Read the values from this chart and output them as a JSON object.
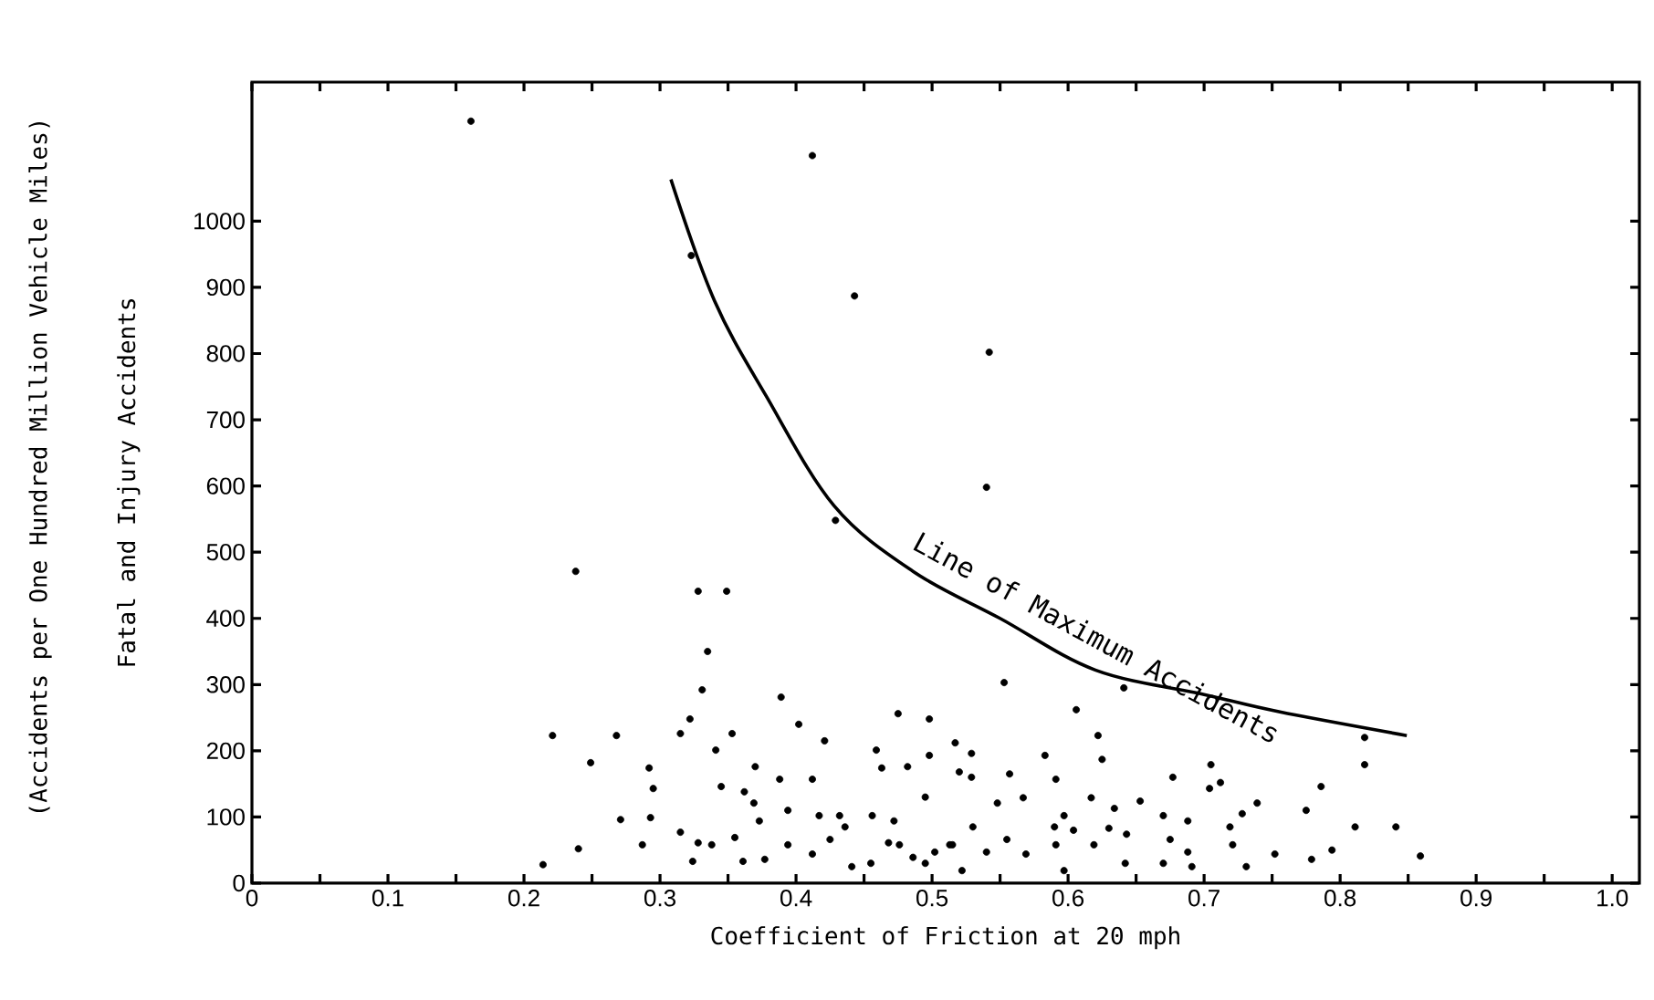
{
  "chart_data": {
    "type": "scatter",
    "xlabel": "Coefficient of Friction at 20 mph",
    "ylabel": "Fatal and Injury Accidents",
    "annotations": [
      "(Accidents per One Hundred Million Vehicle Miles)",
      "Line of Maximum Accidents"
    ],
    "xlim": [
      0,
      1.02
    ],
    "ylim": [
      0,
      1210
    ],
    "xticks": [
      0,
      {
        "value": 0.05,
        "label": null
      },
      0.1,
      {
        "value": 0.15,
        "label": null
      },
      0.2,
      {
        "value": 0.25,
        "label": null
      },
      0.3,
      {
        "value": 0.35,
        "label": null
      },
      0.4,
      {
        "value": 0.45,
        "label": null
      },
      0.5,
      {
        "value": 0.55,
        "label": null
      },
      0.6,
      {
        "value": 0.65,
        "label": null
      },
      0.7,
      {
        "value": 0.75,
        "label": null
      },
      0.8,
      {
        "value": 0.85,
        "label": null
      },
      0.9,
      {
        "value": 0.95,
        "label": null
      },
      {
        "value": 1,
        "label": "1.0"
      }
    ],
    "yticks": [
      0,
      100,
      200,
      300,
      400,
      500,
      600,
      700,
      800,
      900,
      1000
    ],
    "grid": false,
    "series": [
      {
        "color": "#000000",
        "marker": "circle",
        "x": [
          0.161,
          0.412,
          0.323,
          0.443,
          0.429,
          0.238,
          0.328,
          0.349,
          0.542,
          0.54,
          0.335,
          0.331,
          0.221,
          0.249,
          0.268,
          0.315,
          0.322,
          0.389,
          0.402,
          0.421,
          0.498,
          0.475,
          0.498,
          0.459,
          0.341,
          0.353,
          0.24,
          0.214,
          0.271,
          0.292,
          0.295,
          0.293,
          0.287,
          0.345,
          0.37,
          0.388,
          0.412,
          0.362,
          0.369,
          0.373,
          0.394,
          0.417,
          0.432,
          0.456,
          0.463,
          0.482,
          0.495,
          0.472,
          0.315,
          0.328,
          0.338,
          0.324,
          0.355,
          0.361,
          0.377,
          0.394,
          0.412,
          0.425,
          0.441,
          0.455,
          0.468,
          0.476,
          0.486,
          0.502,
          0.515,
          0.517,
          0.52,
          0.436,
          0.553,
          0.641,
          0.606,
          0.622,
          0.818,
          0.818,
          0.529,
          0.583,
          0.625,
          0.705,
          0.786,
          0.704,
          0.712,
          0.677,
          0.739,
          0.775,
          0.728,
          0.811,
          0.841,
          0.719,
          0.859,
          0.794,
          0.752,
          0.779,
          0.721,
          0.653,
          0.67,
          0.688,
          0.529,
          0.557,
          0.591,
          0.617,
          0.567,
          0.548,
          0.597,
          0.634,
          0.63,
          0.604,
          0.643,
          0.59,
          0.53,
          0.555,
          0.513,
          0.54,
          0.569,
          0.591,
          0.619,
          0.642,
          0.675,
          0.688,
          0.691,
          0.597,
          0.522,
          0.495,
          0.731,
          0.67
        ],
        "values": [
          1151,
          1099,
          948,
          887,
          548,
          471,
          441,
          441,
          802,
          598,
          350,
          292,
          223,
          182,
          223,
          226,
          248,
          281,
          240,
          215,
          248,
          256,
          193,
          201,
          201,
          226,
          52,
          28,
          96,
          174,
          143,
          99,
          58,
          146,
          176,
          157,
          157,
          138,
          121,
          94,
          110,
          102,
          102,
          102,
          174,
          176,
          130,
          94,
          77,
          61,
          58,
          33,
          69,
          33,
          36,
          58,
          44,
          66,
          25,
          30,
          61,
          58,
          39,
          47,
          58,
          212,
          168,
          85,
          303,
          295,
          262,
          223,
          220,
          179,
          196,
          193,
          187,
          179,
          146,
          143,
          152,
          160,
          121,
          110,
          105,
          85,
          85,
          85,
          41,
          50,
          44,
          36,
          58,
          124,
          102,
          94,
          160,
          165,
          157,
          129,
          129,
          121,
          102,
          113,
          83,
          80,
          74,
          85,
          85,
          66,
          58,
          47,
          44,
          58,
          58,
          30,
          66,
          47,
          25,
          19,
          19,
          30,
          25,
          30
        ]
      },
      {
        "type": "line",
        "color": "#000000",
        "marker": "none",
        "x": [
          0.308,
          0.34,
          0.378,
          0.428,
          0.486,
          0.55,
          0.62,
          0.7,
          0.755,
          0.849
        ],
        "values": [
          1063,
          880,
          736,
          570,
          471,
          400,
          322,
          285,
          259,
          223
        ]
      }
    ]
  }
}
